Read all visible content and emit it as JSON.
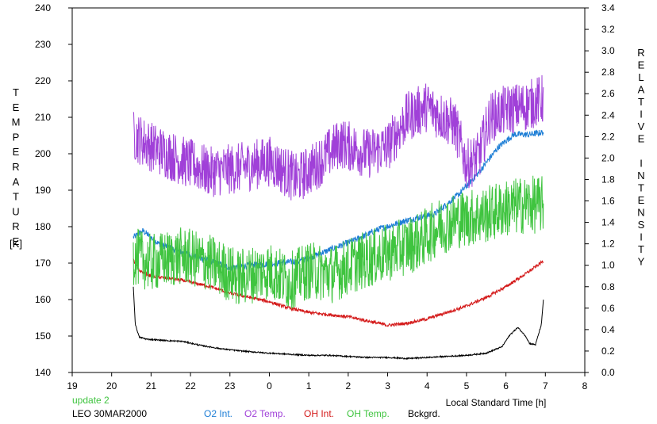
{
  "chart_data": {
    "type": "line",
    "xlabel": "Local Standard Time [h]",
    "ylabel_left": [
      "T",
      "E",
      "M",
      "P",
      "E",
      "R",
      "A",
      "T",
      "U",
      "R",
      "E",
      "",
      "[K]"
    ],
    "ylabel_right": [
      "R",
      "E",
      "L",
      "A",
      "T",
      "I",
      "V",
      "E",
      "",
      "I",
      "N",
      "T",
      "E",
      "N",
      "S",
      "I",
      "T",
      "Y"
    ],
    "x_ticks": [
      "19",
      "20",
      "21",
      "22",
      "23",
      "0",
      "1",
      "2",
      "3",
      "4",
      "5",
      "6",
      "7",
      "8"
    ],
    "x_range": [
      19,
      32
    ],
    "y_left_ticks": [
      "140",
      "150",
      "160",
      "170",
      "180",
      "190",
      "200",
      "210",
      "220",
      "230",
      "240"
    ],
    "y_left_range": [
      140,
      240
    ],
    "y_right_ticks": [
      "0.0",
      "0.2",
      "0.4",
      "0.6",
      "0.8",
      "1.0",
      "1.2",
      "1.4",
      "1.6",
      "1.8",
      "2.0",
      "2.2",
      "2.4",
      "2.6",
      "2.8",
      "3.0",
      "3.2",
      "3.4"
    ],
    "y_right_range": [
      0.0,
      3.4
    ],
    "update_text": "update 2",
    "station_text": "LEO 30MAR2000",
    "series": [
      {
        "name": "O2 Int.",
        "color": "#1f7fd6",
        "axis": "right",
        "noise": 0.03,
        "x": [
          20.55,
          20.8,
          21.2,
          21.8,
          22.5,
          23.0,
          23.5,
          24.2,
          24.8,
          25.5,
          26.2,
          26.8,
          27.5,
          28.2,
          28.8,
          29.3,
          29.8,
          30.2,
          30.6,
          30.95
        ],
        "y": [
          1.26,
          1.32,
          1.2,
          1.12,
          1.04,
          0.98,
          1.0,
          1.02,
          1.04,
          1.14,
          1.24,
          1.34,
          1.42,
          1.48,
          1.66,
          1.86,
          2.1,
          2.22,
          2.22,
          2.24
        ]
      },
      {
        "name": "O2 Temp.",
        "color": "#a040d8",
        "axis": "left",
        "noise": 7,
        "x": [
          20.55,
          21.0,
          21.8,
          22.5,
          23.2,
          24.0,
          24.7,
          25.2,
          25.8,
          26.5,
          27.0,
          27.5,
          28.0,
          28.4,
          28.7,
          29.0,
          29.3,
          29.6,
          30.0,
          30.5,
          30.95
        ],
        "y": [
          205,
          202,
          198,
          195,
          196,
          198,
          193,
          197,
          203,
          200,
          202,
          210,
          213,
          210,
          208,
          197,
          199,
          210,
          212,
          213,
          215
        ]
      },
      {
        "name": "OH Int.",
        "color": "#d41a1a",
        "axis": "right",
        "noise": 0.015,
        "x": [
          20.55,
          20.7,
          21.0,
          21.8,
          22.5,
          23.0,
          23.5,
          24.0,
          24.5,
          25.0,
          25.5,
          26.0,
          26.5,
          27.0,
          27.5,
          28.0,
          28.5,
          29.0,
          29.5,
          30.0,
          30.5,
          30.95
        ],
        "y": [
          1.05,
          0.95,
          0.9,
          0.86,
          0.8,
          0.74,
          0.7,
          0.66,
          0.6,
          0.56,
          0.54,
          0.52,
          0.48,
          0.44,
          0.46,
          0.5,
          0.56,
          0.62,
          0.7,
          0.8,
          0.92,
          1.04
        ]
      },
      {
        "name": "OH Temp.",
        "color": "#3fc43f",
        "axis": "left",
        "noise": 8,
        "x": [
          20.55,
          21.0,
          21.8,
          22.5,
          23.2,
          24.0,
          24.5,
          25.0,
          25.6,
          26.2,
          26.8,
          27.3,
          27.8,
          28.3,
          28.8,
          29.4,
          30.0,
          30.5,
          30.95
        ],
        "y": [
          172,
          170,
          172,
          170,
          166,
          168,
          165,
          168,
          167,
          170,
          172,
          174,
          176,
          180,
          182,
          183,
          185,
          186,
          186
        ]
      },
      {
        "name": "Bckgrd.",
        "color": "#000000",
        "axis": "right",
        "noise": 0.006,
        "x": [
          20.55,
          20.6,
          20.7,
          20.9,
          21.3,
          21.8,
          22.3,
          22.8,
          23.3,
          24.0,
          24.5,
          25.0,
          25.5,
          26.0,
          26.5,
          27.0,
          27.5,
          28.0,
          28.5,
          29.0,
          29.5,
          29.9,
          30.1,
          30.3,
          30.5,
          30.6,
          30.75,
          30.9,
          30.95
        ],
        "y": [
          0.8,
          0.45,
          0.33,
          0.31,
          0.3,
          0.29,
          0.25,
          0.22,
          0.2,
          0.18,
          0.17,
          0.16,
          0.16,
          0.15,
          0.14,
          0.14,
          0.13,
          0.14,
          0.15,
          0.16,
          0.18,
          0.24,
          0.35,
          0.42,
          0.34,
          0.27,
          0.26,
          0.45,
          0.68
        ]
      }
    ]
  }
}
